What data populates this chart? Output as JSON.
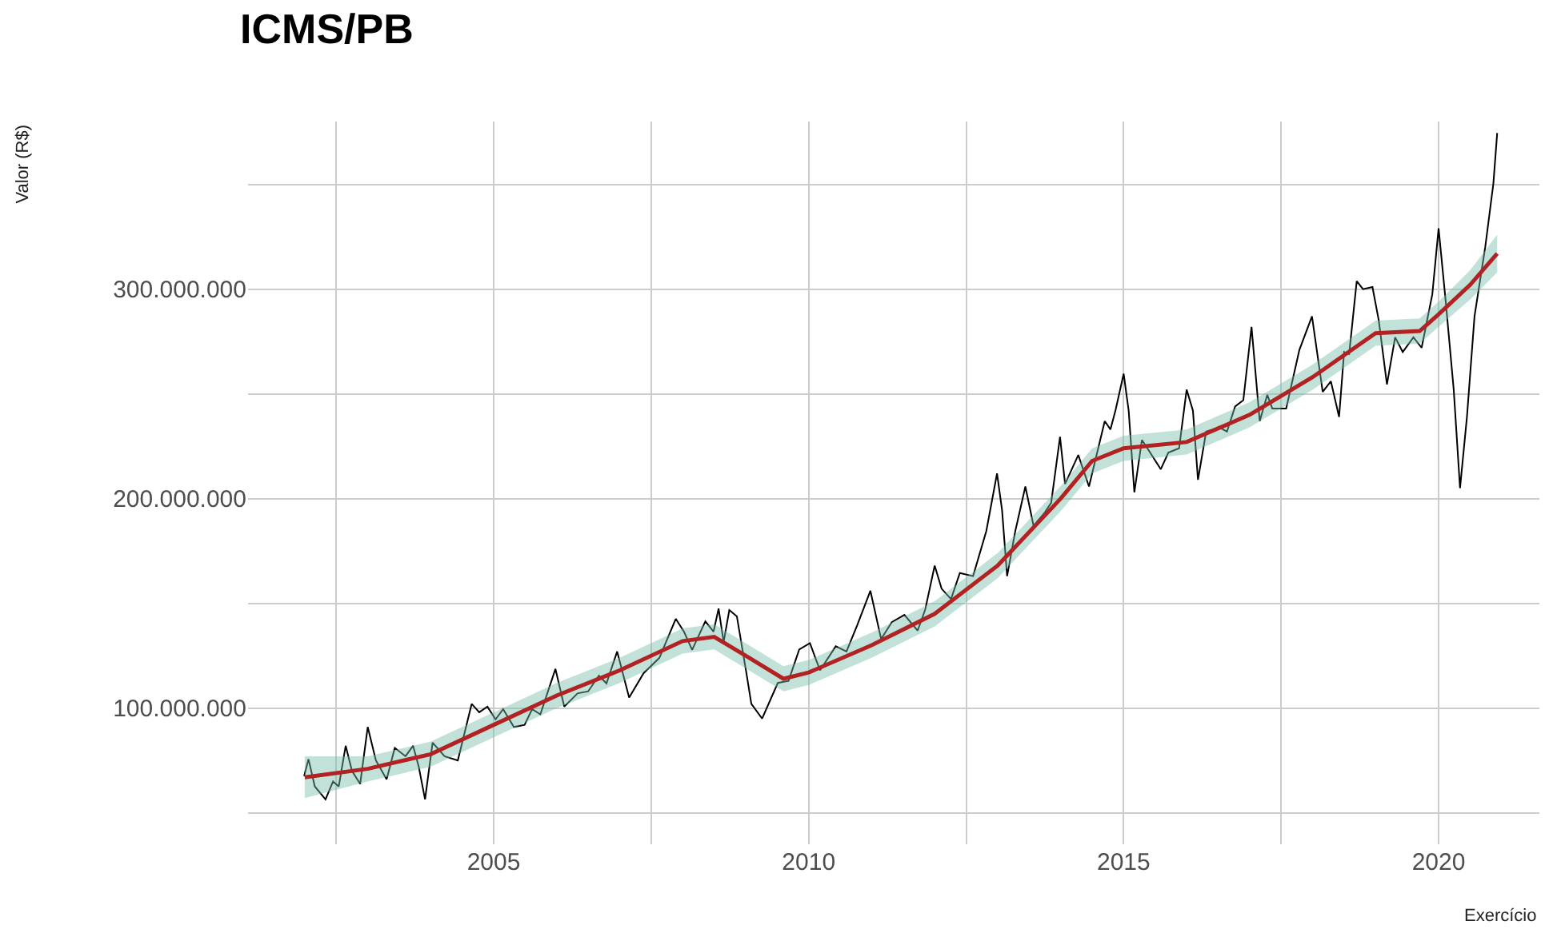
{
  "chart_data": {
    "type": "line",
    "title": "ICMS/PB",
    "xlabel": "Exercício",
    "ylabel": "Valor (R$)",
    "xlim": [
      2001.1,
      2021.6
    ],
    "xticks": [
      {
        "value": 2002.5,
        "label": null
      },
      2005,
      {
        "value": 2007.5,
        "label": null
      },
      2010,
      {
        "value": 2012.5,
        "label": null
      },
      2015,
      {
        "value": 2017.5,
        "label": null
      },
      2020
    ],
    "ylim": [
      35000000,
      380000000
    ],
    "yticks": [
      {
        "value": 50000000,
        "label": null
      },
      {
        "value": 100000000,
        "label": "100.000.000"
      },
      {
        "value": 150000000,
        "label": null
      },
      {
        "value": 200000000,
        "label": "200.000.000"
      },
      {
        "value": 250000000,
        "label": null
      },
      {
        "value": 300000000,
        "label": "300.000.000"
      },
      {
        "value": 350000000,
        "label": null
      }
    ],
    "grid": true,
    "series": [
      {
        "color": "#000000",
        "x": [
          2001.99,
          2002.06,
          2002.16,
          2002.33,
          2002.45,
          2002.54,
          2002.65,
          2002.75,
          2002.88,
          2003.0,
          2003.13,
          2003.3,
          2003.43,
          2003.6,
          2003.72,
          2003.81,
          2003.91,
          2004.03,
          2004.22,
          2004.43,
          2004.65,
          2004.77,
          2004.9,
          2005.03,
          2005.15,
          2005.32,
          2005.49,
          2005.61,
          2005.74,
          2005.98,
          2006.12,
          2006.33,
          2006.5,
          2006.67,
          2006.79,
          2006.96,
          2007.15,
          2007.38,
          2007.63,
          2007.89,
          2008.02,
          2008.15,
          2008.36,
          2008.49,
          2008.57,
          2008.65,
          2008.74,
          2008.86,
          2009.01,
          2009.09,
          2009.26,
          2009.51,
          2009.68,
          2009.85,
          2010.02,
          2010.18,
          2010.43,
          2010.6,
          2010.77,
          2010.98,
          2011.15,
          2011.32,
          2011.52,
          2011.73,
          2011.85,
          2012.0,
          2012.11,
          2012.26,
          2012.4,
          2012.61,
          2012.82,
          2012.99,
          2013.07,
          2013.15,
          2013.28,
          2013.44,
          2013.57,
          2013.74,
          2013.85,
          2013.99,
          2014.07,
          2014.28,
          2014.45,
          2014.7,
          2014.79,
          2014.87,
          2015.0,
          2015.08,
          2015.17,
          2015.29,
          2015.42,
          2015.59,
          2015.71,
          2015.88,
          2016.0,
          2016.1,
          2016.18,
          2016.31,
          2016.52,
          2016.64,
          2016.77,
          2016.9,
          2017.03,
          2017.16,
          2017.28,
          2017.36,
          2017.58,
          2017.79,
          2017.99,
          2018.16,
          2018.29,
          2018.42,
          2018.5,
          2018.58,
          2018.7,
          2018.8,
          2018.95,
          2019.05,
          2019.18,
          2019.31,
          2019.43,
          2019.6,
          2019.73,
          2019.9,
          2020.0,
          2020.11,
          2020.24,
          2020.34,
          2020.45,
          2020.57,
          2020.74,
          2020.87,
          2020.93
        ],
        "values": [
          67500000,
          75600000,
          62600000,
          56400000,
          65000000,
          62600000,
          82000000,
          70000000,
          63800000,
          91000000,
          75000000,
          66000000,
          81000000,
          77000000,
          82000000,
          72000000,
          56400000,
          83500000,
          77000000,
          75000000,
          102000000,
          98000000,
          100700000,
          94600000,
          99500000,
          91000000,
          92000000,
          99500000,
          97000000,
          118700000,
          100700000,
          107000000,
          108000000,
          115500000,
          111800000,
          127000000,
          105000000,
          116700000,
          124000000,
          142600000,
          136500000,
          127800000,
          141400000,
          136500000,
          147500000,
          131500000,
          146800000,
          143800000,
          117000000,
          102000000,
          95000000,
          112000000,
          113000000,
          128000000,
          131000000,
          118000000,
          129500000,
          127000000,
          139500000,
          156000000,
          133000000,
          141000000,
          144500000,
          137000000,
          147000000,
          168000000,
          157000000,
          152000000,
          164500000,
          163000000,
          184500000,
          212000000,
          194500000,
          163000000,
          184500000,
          205800000,
          187000000,
          193000000,
          198000000,
          229500000,
          207000000,
          220800000,
          205800000,
          237000000,
          233000000,
          242000000,
          259600000,
          242000000,
          203000000,
          228000000,
          222000000,
          214000000,
          222000000,
          224000000,
          252000000,
          242000000,
          209000000,
          232000000,
          234000000,
          232000000,
          244000000,
          247000000,
          282000000,
          237000000,
          249500000,
          243000000,
          243000000,
          271000000,
          287000000,
          251000000,
          256000000,
          239000000,
          270000000,
          269000000,
          303800000,
          300000000,
          301000000,
          285000000,
          254500000,
          277000000,
          270000000,
          277000000,
          272000000,
          297500000,
          329000000,
          295000000,
          252000000,
          205000000,
          239000000,
          287000000,
          320000000,
          350500000,
          374500000
        ]
      },
      {
        "color": "#b22222",
        "x": [
          2002,
          2003,
          2004,
          2005,
          2006,
          2007,
          2008,
          2008.5,
          2009,
          2009.6,
          2010,
          2011,
          2012,
          2013,
          2014,
          2014.5,
          2015,
          2016,
          2017,
          2018,
          2019,
          2019.7,
          2020,
          2020.5,
          2020.93
        ],
        "values": [
          67000000,
          71000000,
          78000000,
          92000000,
          106000000,
          118000000,
          132000000,
          134000000,
          125000000,
          114000000,
          117000000,
          130000000,
          145000000,
          168000000,
          200000000,
          218000000,
          224000000,
          227000000,
          240000000,
          258000000,
          279000000,
          280000000,
          288000000,
          302000000,
          317000000
        ],
        "lower": [
          57000000,
          65000000,
          72000000,
          86000000,
          100000000,
          112000000,
          126000000,
          128000000,
          119000000,
          108000000,
          111000000,
          124000000,
          139000000,
          162000000,
          194000000,
          212000000,
          218000000,
          221000000,
          234000000,
          252000000,
          273000000,
          274000000,
          282000000,
          295000000,
          308000000
        ],
        "upper": [
          77000000,
          77000000,
          84000000,
          98000000,
          112000000,
          124000000,
          138000000,
          140000000,
          131000000,
          120000000,
          123000000,
          136000000,
          151000000,
          174000000,
          206000000,
          224000000,
          230000000,
          233000000,
          246000000,
          264000000,
          285000000,
          286000000,
          294000000,
          309000000,
          326000000
        ]
      }
    ]
  }
}
